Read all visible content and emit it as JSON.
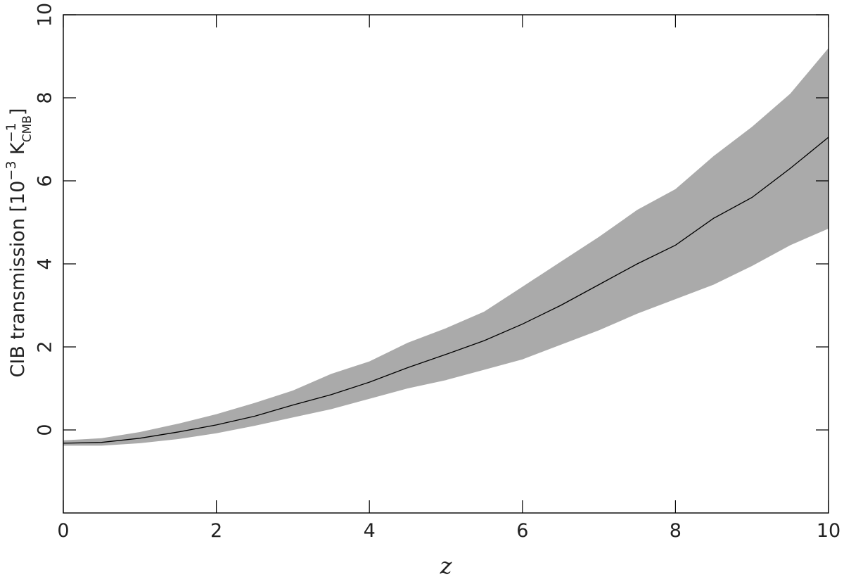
{
  "chart_data": {
    "type": "line",
    "x_label": "z",
    "y_label": [
      {
        "text": "CIB transmission [10"
      },
      {
        "text": "−3",
        "pos": "sup"
      },
      {
        "text": " K"
      },
      {
        "text": "−1",
        "pos": "sup"
      },
      {
        "text": "CMB",
        "pos": "sub"
      },
      {
        "text": "]"
      }
    ],
    "x": [
      0,
      0.5,
      1,
      1.5,
      2,
      2.5,
      3,
      3.5,
      4,
      4.5,
      5,
      5.5,
      6,
      6.5,
      7,
      7.5,
      8,
      8.5,
      9,
      9.5,
      10
    ],
    "series": [
      {
        "color": "#000000",
        "band_color": "#aaaaaa",
        "values": [
          -0.32,
          -0.3,
          -0.2,
          -0.05,
          0.12,
          0.33,
          0.6,
          0.85,
          1.15,
          1.5,
          1.82,
          2.15,
          2.55,
          3.0,
          3.5,
          4.0,
          4.45,
          5.1,
          5.6,
          6.3,
          7.05
        ],
        "upper": [
          -0.25,
          -0.2,
          -0.05,
          0.15,
          0.38,
          0.65,
          0.95,
          1.35,
          1.65,
          2.1,
          2.45,
          2.85,
          3.45,
          4.05,
          4.65,
          5.3,
          5.8,
          6.6,
          7.3,
          8.1,
          9.2
        ],
        "lower": [
          -0.38,
          -0.38,
          -0.32,
          -0.22,
          -0.08,
          0.1,
          0.3,
          0.5,
          0.75,
          1.0,
          1.2,
          1.45,
          1.7,
          2.05,
          2.4,
          2.8,
          3.15,
          3.5,
          3.95,
          4.45,
          4.85
        ]
      }
    ],
    "xlim": [
      0,
      10
    ],
    "ylim": [
      -2,
      10
    ],
    "xticks": [
      0,
      2,
      4,
      6,
      8,
      10
    ],
    "yticks": [
      0,
      2,
      4,
      6,
      8,
      10
    ]
  }
}
